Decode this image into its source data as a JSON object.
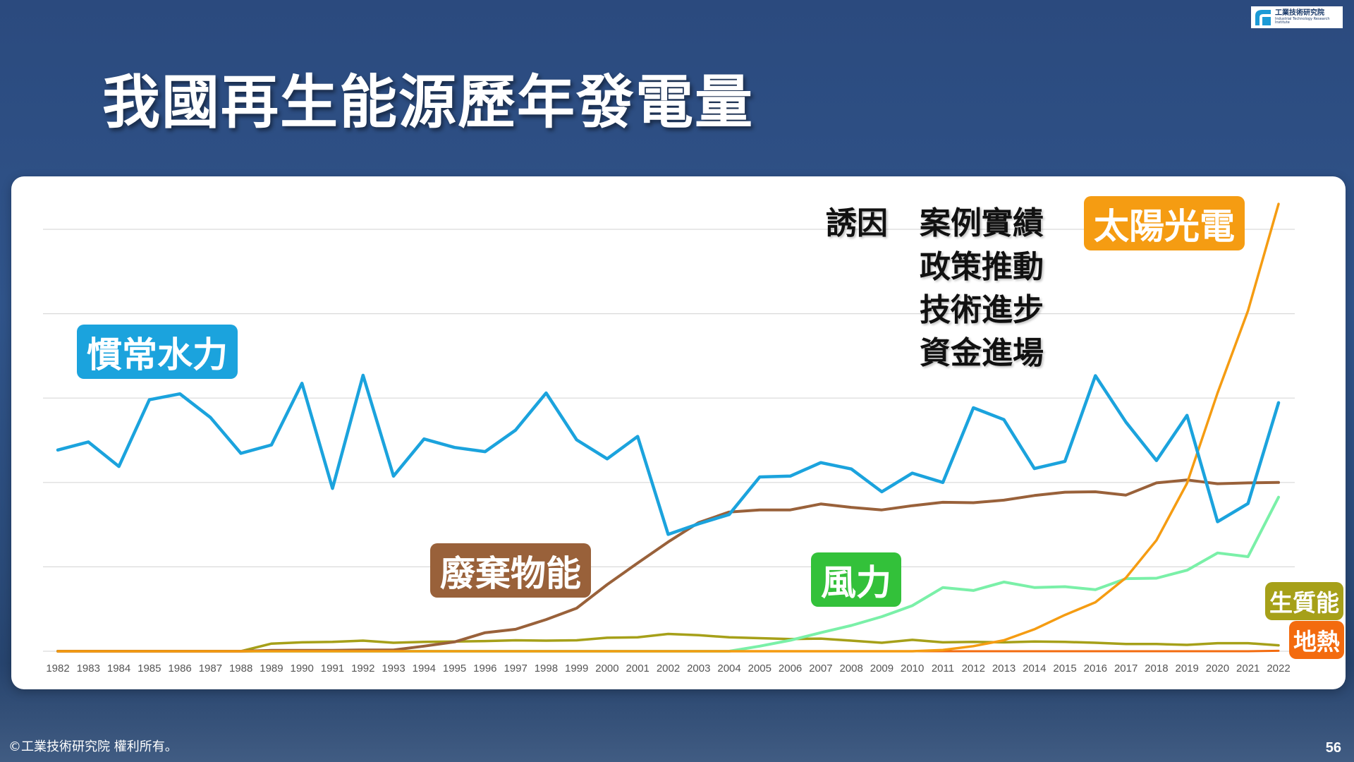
{
  "slide": {
    "title": "我國再生能源歷年發電量",
    "footer": "©工業技術研究院  權利所有。",
    "page_number": "56",
    "logo_text_zh": "工業技術研究院",
    "logo_text_en": "Industrial Technology Research Institute"
  },
  "factors": {
    "label": "誘因",
    "items": [
      "案例實績",
      "政策推動",
      "技術進步",
      "資金進場"
    ]
  },
  "colors": {
    "hydro": "#1ba3dd",
    "solar": "#f59c12",
    "waste": "#99613a",
    "wind": "#33c13a",
    "wind_line": "#7af0a8",
    "biomass": "#a6a019",
    "geothermal": "#f36b0f",
    "grid": "#d9d9d9"
  },
  "chart_data": {
    "type": "line",
    "title": "",
    "xlabel": "",
    "ylabel": "",
    "grid": true,
    "y_axis_labels_shown": false,
    "ylim": [
      0,
      100
    ],
    "x": [
      "1982",
      "1983",
      "1984",
      "1985",
      "1986",
      "1987",
      "1988",
      "1989",
      "1990",
      "1991",
      "1992",
      "1993",
      "1994",
      "1995",
      "1996",
      "1997",
      "1998",
      "1999",
      "2000",
      "2001",
      "2002",
      "2003",
      "2004",
      "2005",
      "2006",
      "2007",
      "2008",
      "2009",
      "2010",
      "2011",
      "2012",
      "2013",
      "2014",
      "2015",
      "2016",
      "2017",
      "2018",
      "2019",
      "2020",
      "2021",
      "2022"
    ],
    "series": [
      {
        "key": "hydro",
        "name": "慣常水力",
        "color": "#1ba3dd",
        "values": [
          47.7,
          49.6,
          43.8,
          59.6,
          61.0,
          55.4,
          46.9,
          48.9,
          63.5,
          38.6,
          65.4,
          41.5,
          50.3,
          48.3,
          47.3,
          52.4,
          61.2,
          50.1,
          45.6,
          50.9,
          27.7,
          30.2,
          32.4,
          41.3,
          41.5,
          44.7,
          43.2,
          37.8,
          42.2,
          40.0,
          57.7,
          54.9,
          43.3,
          45.0,
          65.3,
          54.3,
          45.2,
          55.9,
          30.7,
          35.0,
          58.9
        ]
      },
      {
        "key": "solar",
        "name": "太陽光電",
        "color": "#f59c12",
        "values": [
          0,
          0,
          0,
          0,
          0,
          0,
          0,
          0,
          0,
          0,
          0,
          0,
          0,
          0,
          0,
          0,
          0,
          0,
          0,
          0,
          0,
          0,
          0,
          0,
          0,
          0,
          0,
          0,
          0,
          0.3,
          1.2,
          2.6,
          5.2,
          8.6,
          11.6,
          17.4,
          26.3,
          39.8,
          61.2,
          80.7,
          106
        ]
      },
      {
        "key": "waste",
        "name": "廢棄物能",
        "color": "#99613a",
        "values": [
          0,
          0,
          0,
          0,
          0,
          0,
          0,
          0.2,
          0.2,
          0.2,
          0.3,
          0.3,
          1.2,
          2.2,
          4.4,
          5.2,
          7.5,
          10.2,
          15.8,
          20.9,
          25.9,
          30.5,
          33.0,
          33.5,
          33.5,
          34.9,
          34.1,
          33.5,
          34.5,
          35.3,
          35.2,
          35.8,
          36.9,
          37.7,
          37.8,
          37.0,
          39.9,
          40.6,
          39.7,
          39.9,
          40.0
        ]
      },
      {
        "key": "wind",
        "name": "風力",
        "color": "#7af0a8",
        "values": [
          0,
          0,
          0,
          0,
          0,
          0,
          0,
          0,
          0,
          0,
          0,
          0,
          0,
          0,
          0,
          0,
          0,
          0,
          0,
          0,
          0,
          0,
          0,
          1.2,
          2.6,
          4.4,
          6.1,
          8.2,
          10.8,
          15.1,
          14.4,
          16.4,
          15.1,
          15.3,
          14.6,
          17.2,
          17.3,
          19.2,
          23.3,
          22.4,
          36.5
        ]
      },
      {
        "key": "biomass",
        "name": "生質能",
        "color": "#a6a019",
        "values": [
          0,
          0,
          0,
          0,
          0,
          0,
          0,
          1.8,
          2.1,
          2.2,
          2.5,
          2.0,
          2.2,
          2.3,
          2.4,
          2.6,
          2.5,
          2.6,
          3.2,
          3.3,
          4.1,
          3.8,
          3.3,
          3.1,
          2.9,
          3.0,
          2.5,
          2.0,
          2.7,
          2.1,
          2.2,
          2.1,
          2.3,
          2.2,
          2.0,
          1.7,
          1.7,
          1.5,
          1.9,
          1.9,
          1.4
        ]
      },
      {
        "key": "geothermal",
        "name": "地熱",
        "color": "#f36b0f",
        "values": [
          0,
          0,
          0,
          0,
          0,
          0,
          0,
          0,
          0,
          0,
          0,
          0,
          0,
          0,
          0,
          0,
          0,
          0,
          0,
          0,
          0,
          0,
          0,
          0,
          0,
          0,
          0,
          0,
          0,
          0,
          0,
          0,
          0,
          0,
          0,
          0,
          0,
          0,
          0,
          0,
          0.1
        ]
      }
    ],
    "labels": {
      "hydro": "慣常水力",
      "solar": "太陽光電",
      "waste": "廢棄物能",
      "wind": "風力",
      "biomass": "生質能",
      "geothermal": "地熱"
    }
  }
}
